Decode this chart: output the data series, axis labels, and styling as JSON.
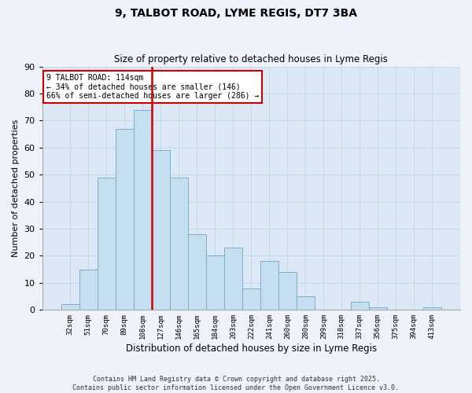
{
  "title": "9, TALBOT ROAD, LYME REGIS, DT7 3BA",
  "subtitle": "Size of property relative to detached houses in Lyme Regis",
  "xlabel": "Distribution of detached houses by size in Lyme Regis",
  "ylabel": "Number of detached properties",
  "bar_labels": [
    "32sqm",
    "51sqm",
    "70sqm",
    "89sqm",
    "108sqm",
    "127sqm",
    "146sqm",
    "165sqm",
    "184sqm",
    "203sqm",
    "222sqm",
    "241sqm",
    "260sqm",
    "280sqm",
    "299sqm",
    "318sqm",
    "337sqm",
    "356sqm",
    "375sqm",
    "394sqm",
    "413sqm"
  ],
  "bar_values": [
    2,
    15,
    49,
    67,
    74,
    59,
    49,
    28,
    20,
    23,
    8,
    18,
    14,
    5,
    0,
    0,
    3,
    1,
    0,
    0,
    1
  ],
  "bar_color": "#c5dff0",
  "bar_edge_color": "#7aaecc",
  "ylim": [
    0,
    90
  ],
  "yticks": [
    0,
    10,
    20,
    30,
    40,
    50,
    60,
    70,
    80,
    90
  ],
  "vline_index": 4,
  "vline_color": "#cc0000",
  "annotation_text": "9 TALBOT ROAD: 114sqm\n← 34% of detached houses are smaller (146)\n66% of semi-detached houses are larger (286) →",
  "annotation_box_color": "#ffffff",
  "annotation_box_edge": "#cc0000",
  "footer_line1": "Contains HM Land Registry data © Crown copyright and database right 2025.",
  "footer_line2": "Contains public sector information licensed under the Open Government Licence v3.0.",
  "bg_color": "#dce8f5",
  "fig_bg_color": "#eef2fa",
  "grid_color": "#c8d8e8"
}
